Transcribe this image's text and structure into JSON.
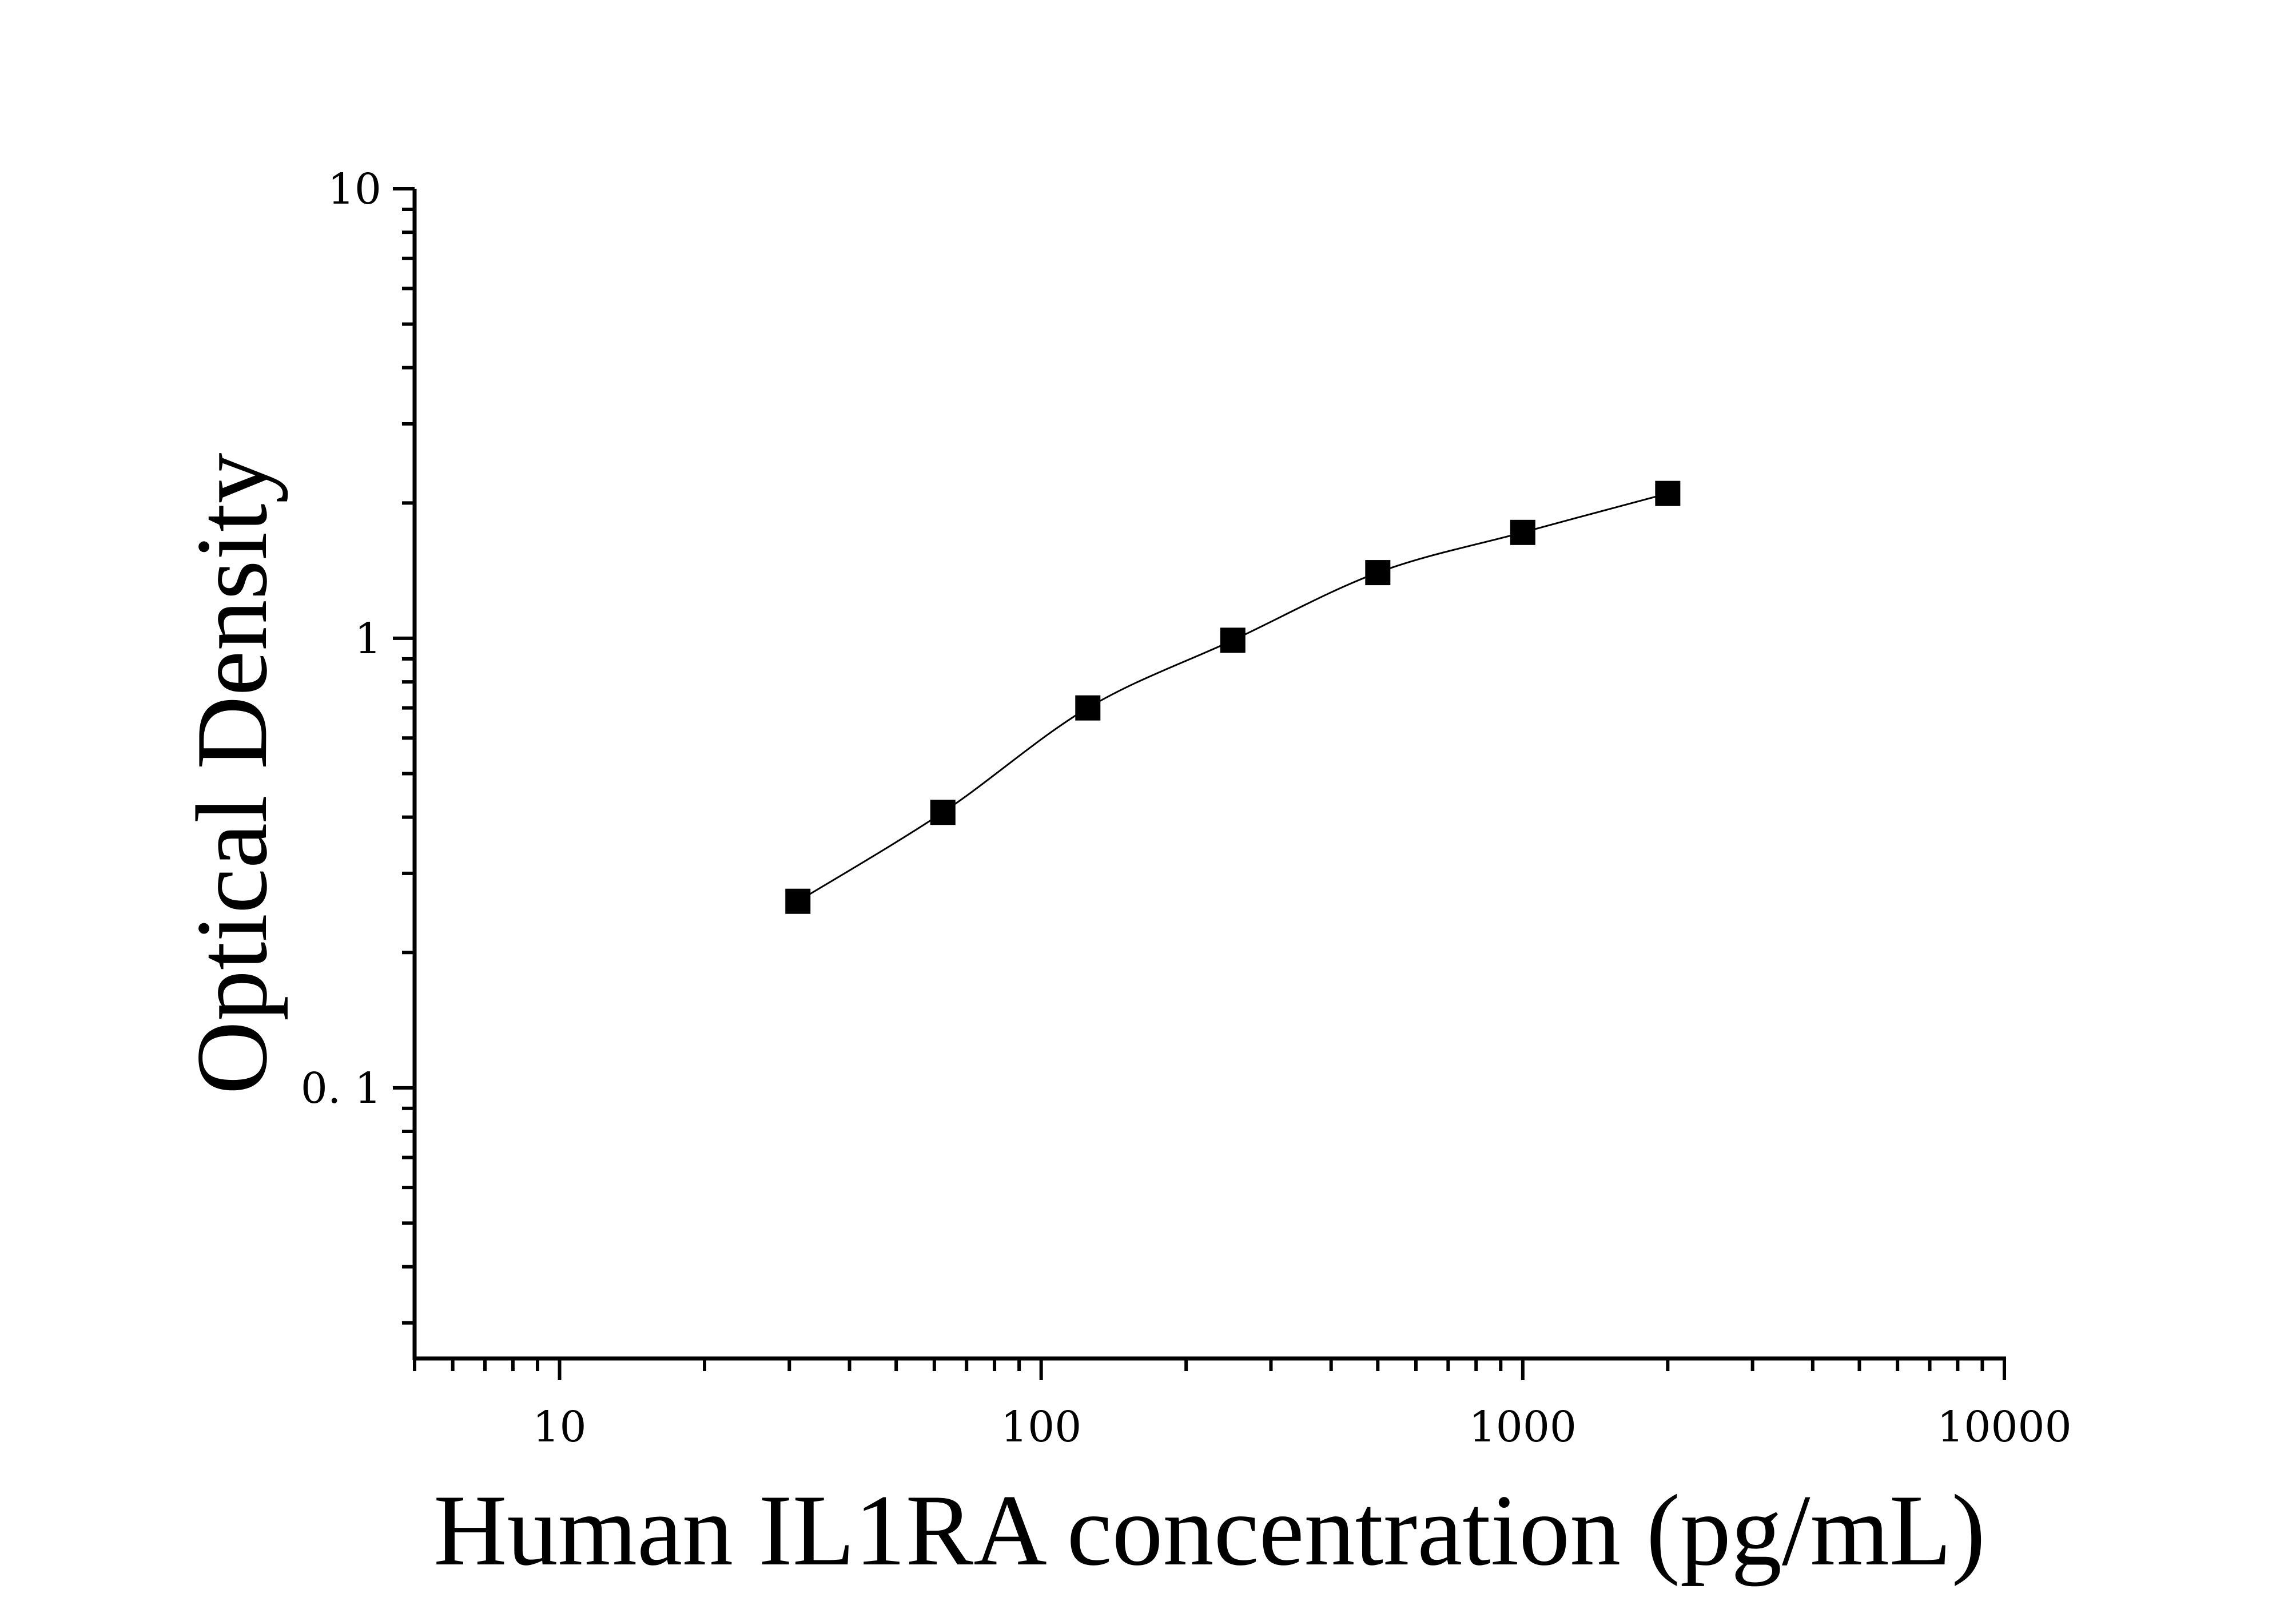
{
  "chart_data": {
    "type": "scatter",
    "title": "",
    "xlabel": "Human IL1RA concentration (pg/mL)",
    "ylabel": "Optical Density",
    "x_scale": "log",
    "y_scale": "log",
    "xlim": [
      5,
      10000
    ],
    "ylim": [
      0.025,
      10
    ],
    "x_tick_labels": [
      "10",
      "100",
      "1000",
      "10000"
    ],
    "y_tick_labels": [
      "0. 1",
      "1",
      "10"
    ],
    "grid": false,
    "legend": "none",
    "marker_color": "#000000",
    "line_color": "#000000",
    "series": [
      {
        "x": [
          31.25,
          62.5,
          125,
          250,
          500,
          1000,
          2000
        ],
        "y": [
          0.26,
          0.41,
          0.7,
          0.99,
          1.4,
          1.72,
          2.1
        ]
      }
    ]
  }
}
